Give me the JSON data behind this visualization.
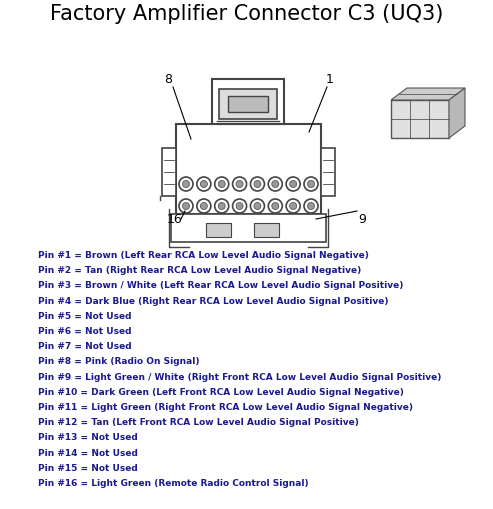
{
  "title": "Factory Amplifier Connector C3 (UQ3)",
  "title_fontsize": 15,
  "title_color": "#000000",
  "bg_color": "#ffffff",
  "pin_labels": [
    "Pin #1 = Brown (Left Rear RCA Low Level Audio Signal Negative)",
    "Pin #2 = Tan (Right Rear RCA Low Level Audio Signal Negative)",
    "Pin #3 = Brown / White (Left Rear RCA Low Level Audio Signal Positive)",
    "Pin #4 = Dark Blue (Right Rear RCA Low Level Audio Signal Positive)",
    "Pin #5 = Not Used",
    "Pin #6 = Not Used",
    "Pin #7 = Not Used",
    "Pin #8 = Pink (Radio On Signal)",
    "Pin #9 = Light Green / White (Right Front RCA Low Level Audio Signal Positive)",
    "Pin #10 = Dark Green (Left Front RCA Low Level Audio Signal Negative)",
    "Pin #11 = Light Green (Right Front RCA Low Level Audio Signal Negative)",
    "Pin #12 = Tan (Left Front RCA Low Level Audio Signal Positive)",
    "Pin #13 = Not Used",
    "Pin #14 = Not Used",
    "Pin #15 = Not Used",
    "Pin #16 = Light Green (Remote Radio Control Signal)"
  ],
  "text_color": "#1a1a8c",
  "text_fontsize": 6.5,
  "connector_color": "#444444",
  "fig_w": 4.93,
  "fig_h": 5.09,
  "dpi": 100
}
